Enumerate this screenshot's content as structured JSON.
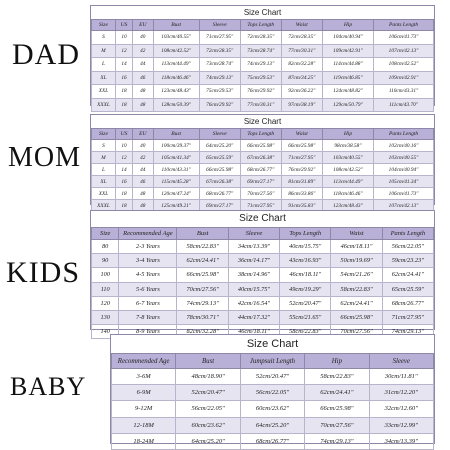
{
  "labels": {
    "dad": "DAD",
    "mom": "MOM",
    "kids": "KIDS",
    "baby": "BABY"
  },
  "charts": [
    {
      "id": "dad",
      "title": "Size Chart",
      "headers": [
        "Size",
        "US",
        "EU",
        "Bust",
        "Sleeve",
        "Tops Length",
        "Waist",
        "Hip",
        "Pants Length"
      ],
      "rows": [
        [
          "S",
          "10",
          "40",
          "103cm/40.55\"",
          "71cm/27.95\"",
          "72cm/28.35\"",
          "72cm/28.35\"",
          "104cm/40.94\"",
          "106cm/41.73\""
        ],
        [
          "M",
          "12",
          "42",
          "108cm/42.52\"",
          "72cm/28.35\"",
          "73cm/28.74\"",
          "77cm/30.31\"",
          "109cm/42.91\"",
          "107cm/42.13\""
        ],
        [
          "L",
          "14",
          "44",
          "113cm/44.49\"",
          "73cm/28.74\"",
          "74cm/29.13\"",
          "82cm/32.28\"",
          "114cm/44.88\"",
          "108cm/42.52\""
        ],
        [
          "XL",
          "16",
          "46",
          "118cm/46.46\"",
          "74cm/29.13\"",
          "75cm/29.53\"",
          "87cm/34.25\"",
          "119cm/46.85\"",
          "109cm/42.91\""
        ],
        [
          "XXL",
          "18",
          "48",
          "123cm/48.43\"",
          "75cm/29.53\"",
          "76cm/29.92\"",
          "92cm/36.22\"",
          "124cm/48.82\"",
          "110cm/43.31\""
        ],
        [
          "XXXL",
          "18",
          "48",
          "128cm/50.39\"",
          "76cm/29.92\"",
          "77cm/30.31\"",
          "97cm/38.19\"",
          "129cm/50.79\"",
          "111cm/43.70\""
        ]
      ]
    },
    {
      "id": "mom",
      "title": "Size Chart",
      "headers": [
        "Size",
        "US",
        "EU",
        "Bust",
        "Sleeve",
        "Tops Length",
        "Waist",
        "Hip",
        "Pants Length"
      ],
      "rows": [
        [
          "S",
          "10",
          "40",
          "100cm/39.37\"",
          "64cm/25.20\"",
          "66cm/25.98\"",
          "66cm/25.98\"",
          "98cm/38.58\"",
          "102cm/40.16\""
        ],
        [
          "M",
          "12",
          "42",
          "105cm/41.34\"",
          "65cm/25.59\"",
          "67cm/26.38\"",
          "71cm/27.95\"",
          "103cm/40.55\"",
          "103cm/40.55\""
        ],
        [
          "L",
          "14",
          "44",
          "110cm/43.31\"",
          "66cm/25.98\"",
          "68cm/26.77\"",
          "76cm/29.92\"",
          "108cm/42.52\"",
          "104cm/40.94\""
        ],
        [
          "XL",
          "16",
          "46",
          "115cm/45.28\"",
          "67cm/26.38\"",
          "69cm/27.17\"",
          "81cm/31.89\"",
          "113cm/44.49\"",
          "105cm/41.34\""
        ],
        [
          "XXL",
          "18",
          "48",
          "120cm/47.24\"",
          "68cm/26.77\"",
          "70cm/27.56\"",
          "86cm/33.86\"",
          "118cm/46.46\"",
          "106cm/41.73\""
        ],
        [
          "XXXL",
          "18",
          "48",
          "125cm/49.21\"",
          "69cm/27.17\"",
          "71cm/27.95\"",
          "91cm/35.83\"",
          "123cm/48.43\"",
          "107cm/42.13\""
        ]
      ]
    },
    {
      "id": "kids",
      "title": "Size Chart",
      "headers": [
        "Size",
        "Recommended Age",
        "Bust",
        "Sleeve",
        "Tops Length",
        "Waist",
        "Pants Length"
      ],
      "rows": [
        [
          "80",
          "2-3 Years",
          "58cm/22.83\"",
          "34cm/13.39\"",
          "40cm/15.75\"",
          "46cm/18.11\"",
          "56cm/22.05\""
        ],
        [
          "90",
          "3-4 Years",
          "62cm/24.41\"",
          "36cm/14.17\"",
          "43cm/16.93\"",
          "50cm/19.69\"",
          "59cm/23.23\""
        ],
        [
          "100",
          "4-5 Years",
          "66cm/25.98\"",
          "38cm/14.96\"",
          "46cm/18.11\"",
          "54cm/21.26\"",
          "62cm/24.41\""
        ],
        [
          "110",
          "5-6 Years",
          "70cm/27.56\"",
          "40cm/15.75\"",
          "49cm/19.29\"",
          "58cm/22.83\"",
          "65cm/25.59\""
        ],
        [
          "120",
          "6-7 Years",
          "74cm/29.13\"",
          "42cm/16.54\"",
          "52cm/20.47\"",
          "62cm/24.41\"",
          "68cm/26.77\""
        ],
        [
          "130",
          "7-8 Years",
          "78cm/30.71\"",
          "44cm/17.32\"",
          "55cm/21.65\"",
          "66cm/25.98\"",
          "71cm/27.95\""
        ],
        [
          "140",
          "8-9 Years",
          "82cm/32.28\"",
          "46cm/18.11\"",
          "58cm/22.83\"",
          "70cm/27.56\"",
          "74cm/29.13\""
        ]
      ]
    },
    {
      "id": "baby",
      "title": "Size Chart",
      "headers": [
        "Recommended Age",
        "Bust",
        "Jumpsuit Length",
        "Hip",
        "Sleeve"
      ],
      "rows": [
        [
          "3-6M",
          "48cm/18.90\"",
          "52cm/20.47\"",
          "58cm/22.83\"",
          "30cm/11.81\""
        ],
        [
          "6-9M",
          "52cm/20.47\"",
          "56cm/22.05\"",
          "62cm/24.41\"",
          "31cm/12.20\""
        ],
        [
          "9-12M",
          "56cm/22.05\"",
          "60cm/23.62\"",
          "66cm/25.98\"",
          "32cm/12.60\""
        ],
        [
          "12-18M",
          "60cm/23.62\"",
          "64cm/25.20\"",
          "70cm/27.56\"",
          "33cm/12.99\""
        ],
        [
          "18-24M",
          "64cm/25.20\"",
          "68cm/26.77\"",
          "74cm/29.13\"",
          "34cm/13.39\""
        ]
      ]
    }
  ]
}
